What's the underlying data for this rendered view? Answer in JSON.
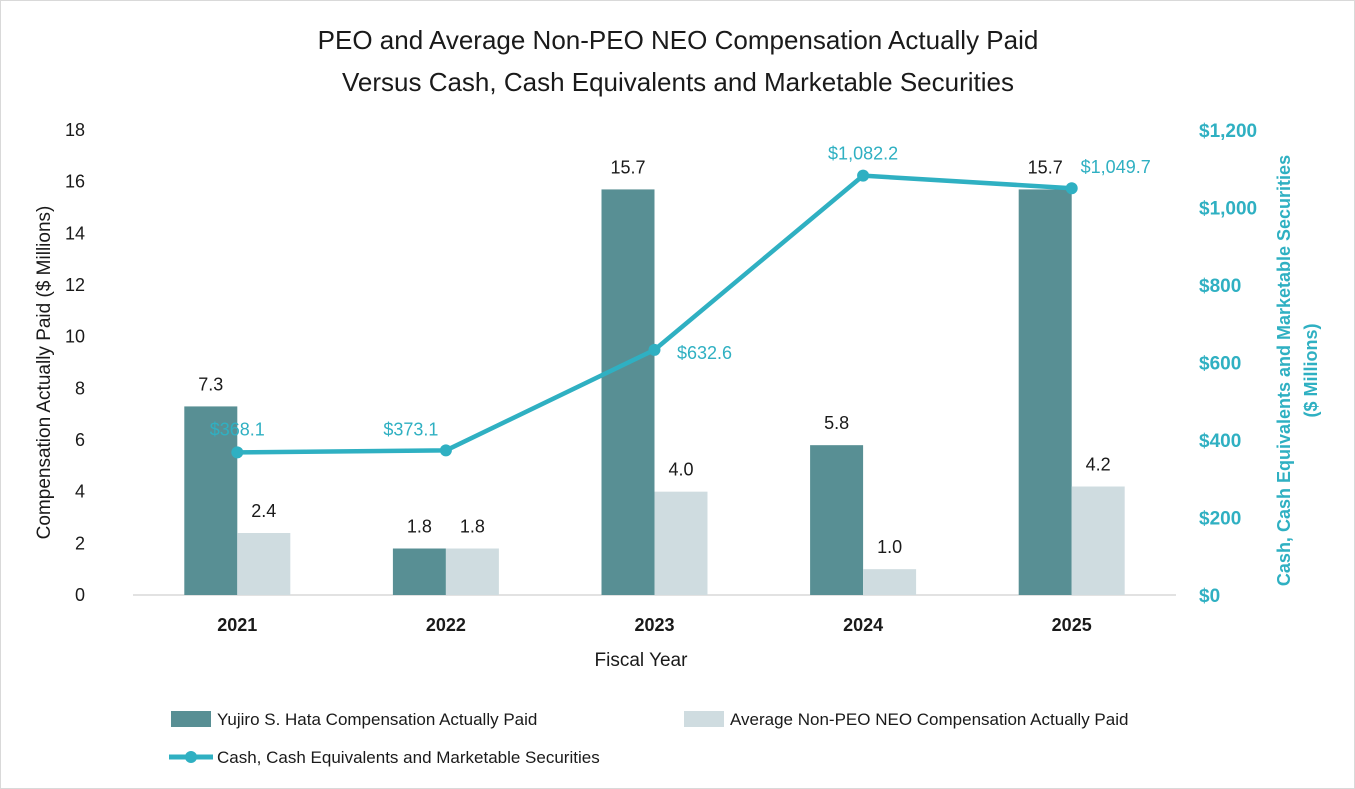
{
  "chart_data": {
    "type": "bar",
    "title_lines": [
      "PEO and Average Non-PEO NEO Compensation Actually Paid",
      "Versus Cash, Cash Equivalents and Marketable Securities"
    ],
    "xlabel": "Fiscal Year",
    "ylabel": "Compensation Actually Paid ($ Millions)",
    "y2label_lines": [
      "Cash, Cash Equivalents and Marketable Securities",
      "($ Millions)"
    ],
    "categories": [
      "2021",
      "2022",
      "2023",
      "2024",
      "2025"
    ],
    "ylim": [
      0,
      18
    ],
    "yticks": [
      "0",
      "2",
      "4",
      "6",
      "8",
      "10",
      "12",
      "14",
      "16",
      "18"
    ],
    "y2lim": [
      0,
      1200
    ],
    "y2ticks": [
      "$0",
      "$200",
      "$400",
      "$600",
      "$800",
      "$1,000",
      "$1,200"
    ],
    "grid": false,
    "legend_position": "bottom",
    "series": [
      {
        "name": "Yujiro S. Hata Compensation Actually Paid",
        "type": "bar",
        "axis": "left",
        "color": "#588f94",
        "values": [
          7.3,
          1.8,
          15.7,
          5.8,
          15.7
        ],
        "labels": [
          "7.3",
          "1.8",
          "15.7",
          "5.8",
          "15.7"
        ]
      },
      {
        "name": "Average Non-PEO NEO Compensation Actually Paid",
        "type": "bar",
        "axis": "left",
        "color": "#cfdce0",
        "values": [
          2.4,
          1.8,
          4.0,
          1.0,
          4.2
        ],
        "labels": [
          "2.4",
          "1.8",
          "4.0",
          "1.0",
          "4.2"
        ]
      },
      {
        "name": "Cash, Cash Equivalents and Marketable Securities",
        "type": "line",
        "axis": "right",
        "color": "#2fb0c2",
        "values": [
          368.1,
          373.1,
          632.6,
          1082.2,
          1049.7
        ],
        "labels": [
          "$368.1",
          "$373.1",
          "$632.6",
          "$1,082.2",
          "$1,049.7"
        ]
      }
    ]
  }
}
